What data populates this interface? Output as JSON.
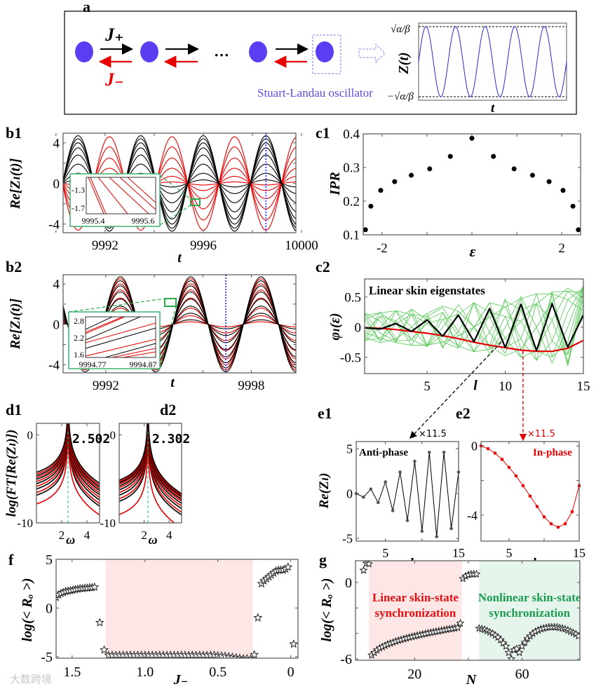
{
  "figure": {
    "panel_labels": {
      "a": "a",
      "b1": "b1",
      "b2": "b2",
      "c1": "c1",
      "c2": "c2",
      "d1": "d1",
      "d2": "d2",
      "e1": "e1",
      "e2": "e2",
      "f": "f",
      "g": "g"
    },
    "watermark": "大数跨境"
  },
  "panel_a": {
    "J_plus": "J₊",
    "J_minus": "J₋",
    "ellipsis": "···",
    "oscillator_label": "Stuart-Landau oscillator",
    "inset_ylabel": "Z(t)",
    "inset_xlabel": "t",
    "inset_ytick_top": "√α/β",
    "inset_ytick_bottom": "−√α/β",
    "inset_periods": 5,
    "colors": {
      "node": "#5a3ff2",
      "forward": "#000000",
      "backward": "#e60000",
      "oscillator": "#5b4be0",
      "inset_wave": "#2a2ad8"
    }
  },
  "chart_data": [
    {
      "id": "b1",
      "type": "line",
      "xlabel": "t",
      "ylabel": "Re[Zₗ(t)]",
      "xlim": [
        9990.29,
        9999.77
      ],
      "ylim": [
        -4.85,
        4.95
      ],
      "xticks": [
        9992,
        9996,
        10000
      ],
      "xtick_labels": [
        "9992",
        "9996",
        "10000"
      ],
      "xminor": [
        9990,
        9994,
        9998
      ],
      "yticks": [
        -4,
        0,
        4
      ],
      "ytick_labels": [
        "-4",
        "0",
        "4"
      ],
      "yminor": [
        -2,
        2
      ],
      "period": 2.55,
      "peak_t": 9996,
      "red_sign": -1,
      "black_amplitudes": [
        4.7,
        4.4,
        4.0,
        3.5,
        2.8,
        1.9,
        1.0,
        0.35
      ],
      "red_amplitudes": [
        4.6,
        3.6,
        2.5,
        1.5,
        0.7,
        0.15
      ],
      "marker_t": 9998.55,
      "inset": {
        "xtick_labels": [
          "9995.4",
          "9995.6"
        ],
        "ytick_labels": [
          "-1.3",
          "-1.7"
        ]
      }
    },
    {
      "id": "b2",
      "type": "line",
      "xlabel": "t",
      "ylabel": "Re[Zₗ(t)]",
      "xlim": [
        9990.24,
        9999.84
      ],
      "ylim": [
        -4.8,
        4.9
      ],
      "xticks": [
        9992,
        9998
      ],
      "xtick_labels": [
        "9992",
        "9998"
      ],
      "xminor": [
        9994,
        9996
      ],
      "yticks": [
        -4,
        0,
        4
      ],
      "ytick_labels": [
        "-4",
        "0",
        "4"
      ],
      "yminor": [
        -2,
        2
      ],
      "period": 2.9,
      "peak_t": 9998.4,
      "red_sign": 1,
      "black_amplitudes": [
        4.7,
        4.3,
        3.8,
        3.2,
        2.5,
        1.8,
        1.1,
        0.45
      ],
      "red_amplitudes": [
        4.5,
        4.0,
        3.4,
        2.6,
        1.6,
        0.85,
        0.25
      ],
      "marker_t": 9996.95,
      "inset": {
        "xtick_labels": [
          "9994.77",
          "9994.87"
        ],
        "ytick_labels": [
          "2.8",
          "2.2",
          "1.6"
        ]
      }
    },
    {
      "id": "c1",
      "type": "scatter",
      "xlabel": "ε",
      "ylabel": "IPR",
      "xlim": [
        -2.42,
        2.42
      ],
      "ylim": [
        0.1,
        0.4
      ],
      "xticks": [
        -2,
        2
      ],
      "xtick_labels": [
        "-2",
        "2"
      ],
      "xminor": [
        -1,
        0,
        1
      ],
      "yticks": [
        0.1,
        0.2,
        0.3,
        0.4
      ],
      "ytick_labels": [
        "0.1",
        "0.2",
        "0.3",
        "0.4"
      ],
      "x": [
        -2.37,
        -2.25,
        -2.03,
        -1.72,
        -1.35,
        -0.94,
        -0.48,
        0,
        0.48,
        0.94,
        1.35,
        1.72,
        2.03,
        2.25,
        2.37
      ],
      "y": [
        0.115,
        0.185,
        0.232,
        0.258,
        0.277,
        0.296,
        0.333,
        0.387,
        0.333,
        0.296,
        0.277,
        0.258,
        0.232,
        0.185,
        0.115
      ]
    },
    {
      "id": "c2",
      "type": "line",
      "title": "Linear skin eigenstates",
      "xlabel": "l",
      "ylabel": "φₗ(ε)",
      "xlim": [
        1,
        15
      ],
      "ylim": [
        -0.77,
        0.8
      ],
      "xticks": [
        5,
        10,
        15
      ],
      "xtick_labels": [
        "5",
        "10",
        "15"
      ],
      "yticks": [
        -0.5,
        0,
        0.5
      ],
      "ytick_labels": [
        "-0.5",
        "0",
        "0.5"
      ],
      "series": [
        {
          "name": "anti-phase",
          "color": "#000000",
          "values": [
            -0.01,
            -0.03,
            0.06,
            -0.07,
            0.12,
            -0.15,
            0.2,
            -0.24,
            0.31,
            -0.34,
            0.38,
            -0.39,
            0.39,
            -0.33,
            0.2
          ]
        },
        {
          "name": "in-phase",
          "color": "#e60000",
          "values": [
            -0.01,
            -0.02,
            -0.04,
            -0.07,
            -0.1,
            -0.14,
            -0.19,
            -0.25,
            -0.3,
            -0.34,
            -0.38,
            -0.4,
            -0.4,
            -0.35,
            -0.22
          ]
        }
      ],
      "other_eigenstates": {
        "color": "#66cc66",
        "count": 13,
        "growth": 1.08
      },
      "annotation": "×11.5"
    },
    {
      "id": "d1",
      "type": "line",
      "xlabel": "ω",
      "ylabel": "log(FT[Re(Zₗ)])",
      "xlim": [
        0,
        5
      ],
      "ylim": [
        -10,
        1.3
      ],
      "xticks": [
        2,
        4
      ],
      "xtick_labels": [
        "2",
        "4"
      ],
      "yticks": [
        -10,
        0
      ],
      "ytick_labels": [
        "-10",
        "0"
      ],
      "peak_omega": 2.502,
      "peak_label": "2.502",
      "black_offsets": [
        -4.7,
        -5.1,
        -5.5,
        -6.0,
        -6.6,
        -7.3
      ],
      "red_offsets": [
        -4.9,
        -5.3,
        -5.75,
        -6.3,
        -7.0,
        -8.3
      ]
    },
    {
      "id": "d2",
      "type": "line",
      "xlabel": "ω",
      "ylabel": "",
      "xlim": [
        0,
        5
      ],
      "ylim": [
        -10,
        1.3
      ],
      "xticks": [
        2,
        4
      ],
      "xtick_labels": [
        "2",
        "4"
      ],
      "yticks": [
        -10,
        0
      ],
      "ytick_labels": [
        "-10",
        "0"
      ],
      "peak_omega": 2.302,
      "peak_label": "2.302",
      "black_offsets": [
        -5.7,
        -6.0,
        -6.35,
        -6.8,
        -7.4,
        -8.1
      ],
      "red_offsets": [
        -5.85,
        -6.15,
        -6.55,
        -7.1,
        -7.8,
        -9.6
      ]
    },
    {
      "id": "e1",
      "type": "line",
      "title": "Anti-phase",
      "xlabel": "l",
      "ylabel": "Re(Zₗ)",
      "xlim": [
        1,
        15
      ],
      "ylim": [
        -5.3,
        5.8
      ],
      "xticks": [
        5,
        15
      ],
      "xtick_labels": [
        "5",
        "15"
      ],
      "xminor": [
        10
      ],
      "yticks": [
        -5,
        0,
        5
      ],
      "ytick_labels": [
        "-5",
        "0",
        "5"
      ],
      "x": [
        1,
        2,
        3,
        4,
        5,
        6,
        7,
        8,
        9,
        10,
        11,
        12,
        13,
        14,
        15
      ],
      "y": [
        0,
        -0.4,
        0.5,
        -1.0,
        1.3,
        -1.9,
        2.4,
        -3.0,
        3.6,
        -4.2,
        4.6,
        -4.8,
        4.6,
        -3.9,
        2.4
      ],
      "color": "#000000"
    },
    {
      "id": "e2",
      "type": "line",
      "title": "In-phase",
      "xlabel": "l",
      "ylabel": "",
      "xlim": [
        1,
        15
      ],
      "ylim": [
        -5.5,
        0.25
      ],
      "xticks": [
        5,
        15
      ],
      "xtick_labels": [
        "5",
        "15"
      ],
      "xminor": [
        10
      ],
      "yticks": [
        -4,
        0
      ],
      "ytick_labels": [
        "-4",
        "0"
      ],
      "yminor": [
        -2
      ],
      "x": [
        1,
        2,
        3,
        4,
        5,
        6,
        7,
        8,
        9,
        10,
        11,
        12,
        13,
        14,
        15
      ],
      "y": [
        0,
        -0.16,
        -0.42,
        -0.78,
        -1.24,
        -1.73,
        -2.3,
        -2.9,
        -3.5,
        -4.1,
        -4.5,
        -4.7,
        -4.5,
        -3.8,
        -2.3
      ],
      "color": "#e60000",
      "annotation": "×11.5"
    },
    {
      "id": "f",
      "type": "scatter",
      "xlabel": "J₋",
      "ylabel": "log(< Rₒ >)",
      "xlim": [
        1.61,
        -0.05
      ],
      "ylim": [
        -5.15,
        5.0
      ],
      "xticks": [
        1.5,
        1.0,
        0.5,
        0
      ],
      "xtick_labels": [
        "1.5",
        "1.0",
        "0.5",
        "0"
      ],
      "yticks": [
        -5,
        0,
        5
      ],
      "ytick_labels": [
        "-5",
        "0",
        "5"
      ],
      "shaded_region": {
        "from": 1.27,
        "to": 0.26,
        "color": "#fde6e6"
      },
      "segments": [
        {
          "x_start": 1.61,
          "x_step": -0.0165,
          "y": [
            1.1,
            1.35,
            1.5,
            1.6,
            1.7,
            1.75,
            1.8,
            1.85,
            1.9,
            1.95,
            2.0,
            2.0,
            2.05,
            2.05,
            2.1,
            2.1,
            2.15
          ]
        },
        {
          "x_start": 1.31,
          "x_step": -0.03,
          "y": [
            -1.5,
            -4.3
          ]
        },
        {
          "x_start": 1.25,
          "x_step": -0.025,
          "y": [
            -4.85,
            -4.85,
            -4.85,
            -4.85,
            -4.85,
            -4.85,
            -4.85,
            -4.85,
            -4.85,
            -4.85,
            -4.85,
            -4.85,
            -4.85,
            -4.85,
            -4.85,
            -4.85,
            -4.85,
            -4.85,
            -4.85,
            -4.85,
            -4.85,
            -4.85,
            -4.85,
            -4.85,
            -4.85,
            -4.85,
            -4.85,
            -4.85,
            -4.85,
            -4.85,
            -4.9,
            -4.92,
            -4.95,
            -5.0,
            -5.05,
            -5.1,
            -5.15,
            -5.2,
            -5.2,
            -5.25
          ]
        },
        {
          "x_start": 0.25,
          "x_step": -0.025,
          "y": [
            -4.8,
            -1.0
          ]
        },
        {
          "x_start": 0.2,
          "x_step": -0.0165,
          "y": [
            2.5,
            2.8,
            3.0,
            3.2,
            3.4,
            3.6,
            3.8,
            3.9,
            3.9,
            3.9,
            4.0,
            4.2
          ]
        },
        {
          "x_start": -0.02,
          "x_step": 0,
          "y": [
            -3.7
          ]
        }
      ]
    },
    {
      "id": "g",
      "type": "scatter",
      "xlabel": "N",
      "ylabel": "log(< Rₒ >)",
      "xlim": [
        -2,
        81.5
      ],
      "ylim": [
        -6.1,
        1.7
      ],
      "xticks": [
        20,
        60
      ],
      "xtick_labels": [
        "20",
        "60"
      ],
      "xminor": [
        40
      ],
      "yticks": [
        -6,
        0
      ],
      "ytick_labels": [
        "-6",
        "0"
      ],
      "yminor": [
        -4,
        -2
      ],
      "regions": [
        {
          "from": 3,
          "to": 37.6,
          "color": "#fde6e6",
          "label_lines": [
            "Linear skin-state",
            "synchronization"
          ],
          "label_color": "#e01010"
        },
        {
          "from": 44,
          "to": 81.5,
          "color": "#e6f5ec",
          "label_lines": [
            "Nonlinear skin-state",
            "synchronization"
          ],
          "label_color": "#1a9b50"
        }
      ],
      "segments": [
        {
          "x_start": 1,
          "x_step": 1,
          "y": [
            0.95,
            1.5,
            1.45
          ]
        },
        {
          "x_start": 4,
          "x_step": 1,
          "y": [
            -5.7,
            -5.5,
            -5.3,
            -5.15,
            -5.05,
            -4.95,
            -4.85,
            -4.77,
            -4.7,
            -4.62,
            -4.55,
            -4.49,
            -4.43,
            -4.37,
            -4.31,
            -4.26,
            -4.21,
            -4.16,
            -4.11,
            -4.06,
            -4.02,
            -3.97,
            -3.93,
            -3.89,
            -3.85,
            -3.81,
            -3.77,
            -3.73,
            -3.69,
            -3.65,
            -3.62,
            -3.58,
            -3.54,
            -3.2
          ]
        },
        {
          "x_start": 38,
          "x_step": 1,
          "y": [
            0.3,
            0.5,
            0.6,
            0.65,
            0.65,
            0.65
          ]
        },
        {
          "x_start": 44,
          "x_step": 1,
          "y": [
            -3.6,
            -3.65,
            -3.7,
            -3.8,
            -3.9,
            -4.0,
            -4.15,
            -4.3,
            -4.5,
            -4.75,
            -5.0,
            -5.5,
            -6.0,
            -5.3,
            -5.2,
            -5.5,
            -5.0,
            -4.7,
            -4.4,
            -4.2,
            -4.0,
            -3.85,
            -3.75,
            -3.65,
            -3.6,
            -3.55,
            -3.5,
            -3.5,
            -3.5,
            -3.5,
            -3.55,
            -3.6,
            -3.65,
            -3.75,
            -3.85,
            -3.95,
            -4.05,
            -4.2
          ]
        }
      ]
    }
  ]
}
